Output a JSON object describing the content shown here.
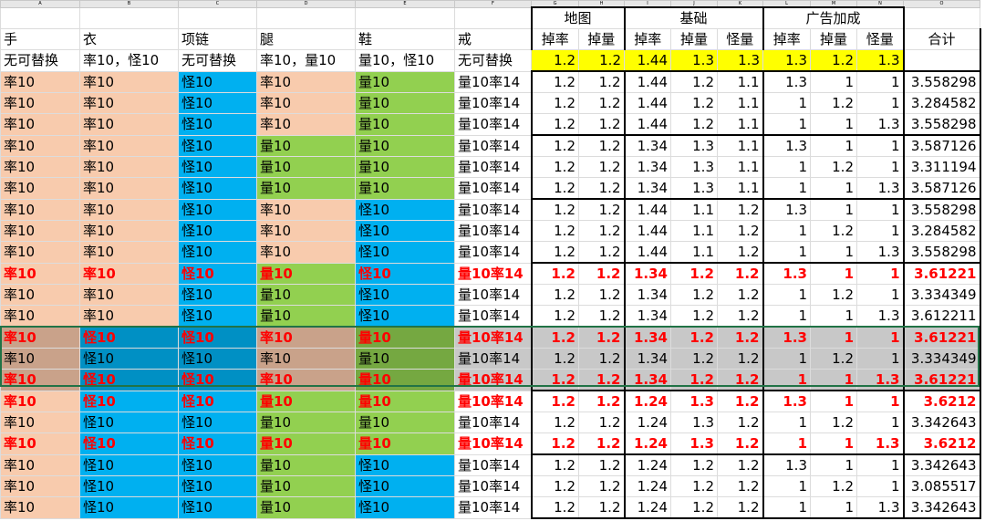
{
  "column_letters": [
    "A",
    "B",
    "C",
    "D",
    "E",
    "F",
    "G",
    "H",
    "I",
    "J",
    "K",
    "L",
    "M",
    "N",
    "O"
  ],
  "group_headers": {
    "map": "地图",
    "base": "基础",
    "ad": "广告加成"
  },
  "headers": [
    "手",
    "衣",
    "项链",
    "腿",
    "鞋",
    "戒",
    "掉率",
    "掉量",
    "掉率",
    "掉量",
    "怪量",
    "掉率",
    "掉量",
    "怪量",
    "合计"
  ],
  "base_row": {
    "labels": [
      "无可替换",
      "率10，怪10",
      "无可替换",
      "率10，量10",
      "量10，怪10",
      "无可替换"
    ],
    "values": [
      "1.2",
      "1.2",
      "1.44",
      "1.3",
      "1.3",
      "1.3",
      "1.2",
      "1.3",
      ""
    ]
  },
  "rows": [
    {
      "t": [
        "率10",
        "率10",
        "怪10",
        "率10",
        "量10",
        "量10率14"
      ],
      "v": [
        "1.2",
        "1.2",
        "1.44",
        "1.2",
        "1.1",
        "1.3",
        "1",
        "1",
        "3.558298"
      ],
      "c": [
        "peach",
        "peach",
        "blue",
        "peach",
        "green",
        "white"
      ]
    },
    {
      "t": [
        "率10",
        "率10",
        "怪10",
        "率10",
        "量10",
        "量10率14"
      ],
      "v": [
        "1.2",
        "1.2",
        "1.44",
        "1.2",
        "1.1",
        "1",
        "1.2",
        "1",
        "3.284582"
      ],
      "c": [
        "peach",
        "peach",
        "blue",
        "peach",
        "green",
        "white"
      ]
    },
    {
      "t": [
        "率10",
        "率10",
        "怪10",
        "率10",
        "量10",
        "量10率14"
      ],
      "v": [
        "1.2",
        "1.2",
        "1.44",
        "1.2",
        "1.1",
        "1",
        "1",
        "1.3",
        "3.558298"
      ],
      "c": [
        "peach",
        "peach",
        "blue",
        "peach",
        "green",
        "white"
      ]
    },
    {
      "t": [
        "率10",
        "率10",
        "怪10",
        "量10",
        "量10",
        "量10率14"
      ],
      "v": [
        "1.2",
        "1.2",
        "1.34",
        "1.3",
        "1.1",
        "1.3",
        "1",
        "1",
        "3.587126"
      ],
      "c": [
        "peach",
        "peach",
        "blue",
        "green",
        "green",
        "white"
      ]
    },
    {
      "t": [
        "率10",
        "率10",
        "怪10",
        "量10",
        "量10",
        "量10率14"
      ],
      "v": [
        "1.2",
        "1.2",
        "1.34",
        "1.3",
        "1.1",
        "1",
        "1.2",
        "1",
        "3.311194"
      ],
      "c": [
        "peach",
        "peach",
        "blue",
        "green",
        "green",
        "white"
      ]
    },
    {
      "t": [
        "率10",
        "率10",
        "怪10",
        "量10",
        "量10",
        "量10率14"
      ],
      "v": [
        "1.2",
        "1.2",
        "1.34",
        "1.3",
        "1.1",
        "1",
        "1",
        "1.3",
        "3.587126"
      ],
      "c": [
        "peach",
        "peach",
        "blue",
        "green",
        "green",
        "white"
      ]
    },
    {
      "t": [
        "率10",
        "率10",
        "怪10",
        "率10",
        "怪10",
        "量10率14"
      ],
      "v": [
        "1.2",
        "1.2",
        "1.44",
        "1.1",
        "1.2",
        "1.3",
        "1",
        "1",
        "3.558298"
      ],
      "c": [
        "peach",
        "peach",
        "blue",
        "peach",
        "blue",
        "white"
      ]
    },
    {
      "t": [
        "率10",
        "率10",
        "怪10",
        "率10",
        "怪10",
        "量10率14"
      ],
      "v": [
        "1.2",
        "1.2",
        "1.44",
        "1.1",
        "1.2",
        "1",
        "1.2",
        "1",
        "3.284582"
      ],
      "c": [
        "peach",
        "peach",
        "blue",
        "peach",
        "blue",
        "white"
      ]
    },
    {
      "t": [
        "率10",
        "率10",
        "怪10",
        "率10",
        "怪10",
        "量10率14"
      ],
      "v": [
        "1.2",
        "1.2",
        "1.44",
        "1.1",
        "1.2",
        "1",
        "1",
        "1.3",
        "3.558298"
      ],
      "c": [
        "peach",
        "peach",
        "blue",
        "peach",
        "blue",
        "white"
      ]
    },
    {
      "t": [
        "率10",
        "率10",
        "怪10",
        "量10",
        "怪10",
        "量10率14"
      ],
      "v": [
        "1.2",
        "1.2",
        "1.34",
        "1.2",
        "1.2",
        "1.3",
        "1",
        "1",
        "3.61221"
      ],
      "c": [
        "peach",
        "peach",
        "blue",
        "green",
        "blue",
        "white"
      ],
      "red": true
    },
    {
      "t": [
        "率10",
        "率10",
        "怪10",
        "量10",
        "怪10",
        "量10率14"
      ],
      "v": [
        "1.2",
        "1.2",
        "1.34",
        "1.2",
        "1.2",
        "1",
        "1.2",
        "1",
        "3.334349"
      ],
      "c": [
        "peach",
        "peach",
        "blue",
        "green",
        "blue",
        "white"
      ]
    },
    {
      "t": [
        "率10",
        "率10",
        "怪10",
        "量10",
        "怪10",
        "量10率14"
      ],
      "v": [
        "1.2",
        "1.2",
        "1.34",
        "1.2",
        "1.2",
        "1",
        "1",
        "1.3",
        "3.612211"
      ],
      "c": [
        "peach",
        "peach",
        "blue",
        "green",
        "blue",
        "white"
      ]
    },
    {
      "t": [
        "率10",
        "怪10",
        "怪10",
        "率10",
        "量10",
        "量10率14"
      ],
      "v": [
        "1.2",
        "1.2",
        "1.34",
        "1.2",
        "1.2",
        "1.3",
        "1",
        "1",
        "3.61221"
      ],
      "c": [
        "peach",
        "blue",
        "blue",
        "peach",
        "green",
        "white"
      ],
      "red": true,
      "sel": true
    },
    {
      "t": [
        "率10",
        "怪10",
        "怪10",
        "率10",
        "量10",
        "量10率14"
      ],
      "v": [
        "1.2",
        "1.2",
        "1.34",
        "1.2",
        "1.2",
        "1",
        "1.2",
        "1",
        "3.334349"
      ],
      "c": [
        "peach",
        "blue",
        "blue",
        "peach",
        "green",
        "white"
      ],
      "sel": true
    },
    {
      "t": [
        "率10",
        "怪10",
        "怪10",
        "率10",
        "量10",
        "量10率14"
      ],
      "v": [
        "1.2",
        "1.2",
        "1.34",
        "1.2",
        "1.2",
        "1",
        "1",
        "1.3",
        "3.61221"
      ],
      "c": [
        "peach",
        "blue",
        "blue",
        "peach",
        "green",
        "white"
      ],
      "red": true,
      "sel": true
    },
    {
      "t": [
        "率10",
        "怪10",
        "怪10",
        "量10",
        "量10",
        "量10率14"
      ],
      "v": [
        "1.2",
        "1.2",
        "1.24",
        "1.3",
        "1.2",
        "1.3",
        "1",
        "1",
        "3.6212"
      ],
      "c": [
        "peach",
        "blue",
        "blue",
        "green",
        "green",
        "white"
      ],
      "red": true
    },
    {
      "t": [
        "率10",
        "怪10",
        "怪10",
        "量10",
        "量10",
        "量10率14"
      ],
      "v": [
        "1.2",
        "1.2",
        "1.24",
        "1.3",
        "1.2",
        "1",
        "1.2",
        "1",
        "3.342643"
      ],
      "c": [
        "peach",
        "blue",
        "blue",
        "green",
        "green",
        "white"
      ]
    },
    {
      "t": [
        "率10",
        "怪10",
        "怪10",
        "量10",
        "量10",
        "量10率14"
      ],
      "v": [
        "1.2",
        "1.2",
        "1.24",
        "1.3",
        "1.2",
        "1",
        "1",
        "1.3",
        "3.6212"
      ],
      "c": [
        "peach",
        "blue",
        "blue",
        "green",
        "green",
        "white"
      ],
      "red": true
    },
    {
      "t": [
        "率10",
        "怪10",
        "怪10",
        "量10",
        "怪10",
        "量10率14"
      ],
      "v": [
        "1.2",
        "1.2",
        "1.24",
        "1.2",
        "1.2",
        "1.3",
        "1",
        "1",
        "3.342643"
      ],
      "c": [
        "peach",
        "blue",
        "blue",
        "green",
        "blue",
        "white"
      ]
    },
    {
      "t": [
        "率10",
        "怪10",
        "怪10",
        "量10",
        "怪10",
        "量10率14"
      ],
      "v": [
        "1.2",
        "1.2",
        "1.24",
        "1.2",
        "1.2",
        "1",
        "1.2",
        "1",
        "3.085517"
      ],
      "c": [
        "peach",
        "blue",
        "blue",
        "green",
        "blue",
        "white"
      ]
    },
    {
      "t": [
        "率10",
        "怪10",
        "怪10",
        "量10",
        "怪10",
        "量10率14"
      ],
      "v": [
        "1.2",
        "1.2",
        "1.24",
        "1.2",
        "1.2",
        "1",
        "1",
        "1.3",
        "3.342643"
      ],
      "c": [
        "peach",
        "blue",
        "blue",
        "green",
        "blue",
        "white"
      ]
    }
  ],
  "colors": {
    "peach": "#f8cbad",
    "blue": "#00b0f0",
    "green": "#92d050",
    "yellow": "#ffff00",
    "selection": "#217346",
    "highlight_text": "#ff0000"
  }
}
